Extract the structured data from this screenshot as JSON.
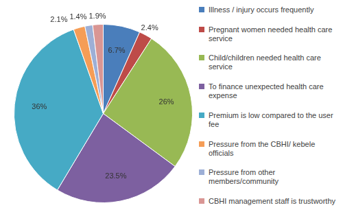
{
  "chart_data": {
    "type": "pie",
    "categories": [
      "Illness / injury occurs frequently",
      "Pregnant women needed health care service",
      "Child/children needed health care service",
      "To finance unexpected health care expense",
      "Premium is low compared to the user fee",
      "Pressure from the CBHI/ kebele officials",
      "Pressure from other members/community",
      "CBHI management staff is trustworthy"
    ],
    "values": [
      6.7,
      2.4,
      26,
      23.5,
      36,
      2.1,
      1.4,
      1.9
    ],
    "value_labels": [
      "6.7%",
      "2.4%",
      "26%",
      "23.5%",
      "36%",
      "2.1%",
      "1.4%",
      "1.9%"
    ],
    "colors": [
      "#4a7ebb",
      "#be4b48",
      "#98b954",
      "#7d60a0",
      "#46aac5",
      "#f59d56",
      "#9dafd6",
      "#d99694"
    ],
    "data_labels": true,
    "legend": "right"
  }
}
